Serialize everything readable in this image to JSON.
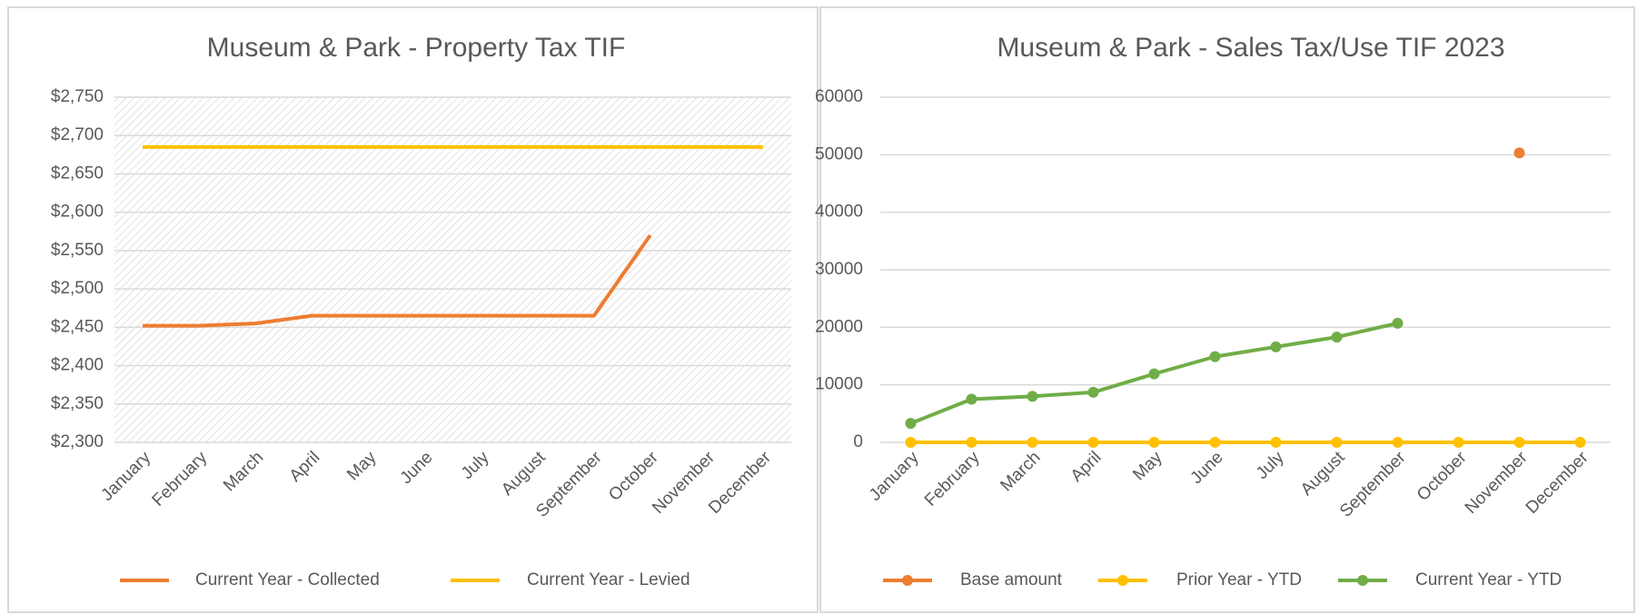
{
  "chart_data": [
    {
      "type": "line",
      "title": "Museum & Park - Property Tax TIF",
      "categories": [
        "January",
        "February",
        "March",
        "April",
        "May",
        "June",
        "July",
        "August",
        "September",
        "October",
        "November",
        "December"
      ],
      "series": [
        {
          "name": "Current Year - Collected",
          "color": "#ed7d31",
          "values": [
            2452,
            2452,
            2455,
            2465,
            2465,
            2465,
            2465,
            2465,
            2465,
            2570,
            null,
            null
          ]
        },
        {
          "name": "Current Year - Levied",
          "color": "#ffc000",
          "values": [
            2685,
            2685,
            2685,
            2685,
            2685,
            2685,
            2685,
            2685,
            2685,
            2685,
            2685,
            2685
          ]
        }
      ],
      "ylim": [
        2300,
        2750
      ],
      "yticks": [
        {
          "value": 2300,
          "label": "$2,300"
        },
        {
          "value": 2350,
          "label": "$2,350"
        },
        {
          "value": 2400,
          "label": "$2,400"
        },
        {
          "value": 2450,
          "label": "$2,450"
        },
        {
          "value": 2500,
          "label": "$2,500"
        },
        {
          "value": 2550,
          "label": "$2,550"
        },
        {
          "value": 2600,
          "label": "$2,600"
        },
        {
          "value": 2650,
          "label": "$2,650"
        },
        {
          "value": 2700,
          "label": "$2,700"
        },
        {
          "value": 2750,
          "label": "$2,750"
        }
      ],
      "grid": true,
      "markers": false,
      "legend": "bottom"
    },
    {
      "type": "line",
      "title": "Museum & Park - Sales Tax/Use TIF 2023",
      "categories": [
        "January",
        "February",
        "March",
        "April",
        "May",
        "June",
        "July",
        "August",
        "September",
        "October",
        "November",
        "December"
      ],
      "series": [
        {
          "name": "Base amount",
          "color": "#ed7d31",
          "values": [
            null,
            null,
            null,
            null,
            null,
            null,
            null,
            null,
            null,
            null,
            50300,
            null
          ]
        },
        {
          "name": "Prior Year - YTD",
          "color": "#ffc000",
          "values": [
            0,
            0,
            0,
            0,
            0,
            0,
            0,
            0,
            0,
            0,
            0,
            0
          ]
        },
        {
          "name": "Current Year - YTD",
          "color": "#70ad47",
          "values": [
            3300,
            7500,
            8000,
            8700,
            11900,
            14900,
            16600,
            18300,
            20700,
            null,
            null,
            null
          ]
        }
      ],
      "ylim": [
        0,
        60000
      ],
      "yticks": [
        0,
        10000,
        20000,
        30000,
        40000,
        50000,
        60000
      ],
      "grid": true,
      "markers": true,
      "legend": "bottom"
    }
  ]
}
